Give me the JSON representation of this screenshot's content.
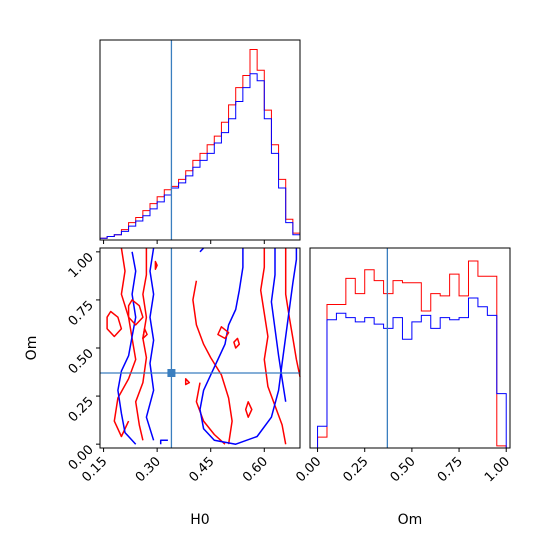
{
  "chart_data": {
    "type": "corner",
    "parameters": [
      "H0",
      "Om"
    ],
    "truth": {
      "H0": 0.34,
      "Om": 0.37
    },
    "colors": {
      "red": "#ff0000",
      "blue": "#0000ff",
      "truth": "#3a7ebf"
    },
    "panels": [
      {
        "name": "H0 marginal histogram",
        "type": "histogram",
        "xlim": [
          0.14,
          0.7
        ],
        "bin_edges": [
          0.14,
          0.16,
          0.18,
          0.2,
          0.22,
          0.24,
          0.26,
          0.28,
          0.3,
          0.32,
          0.34,
          0.36,
          0.38,
          0.4,
          0.42,
          0.44,
          0.46,
          0.48,
          0.5,
          0.52,
          0.54,
          0.56,
          0.58,
          0.6,
          0.62,
          0.64,
          0.66,
          0.68,
          0.7
        ],
        "series": [
          {
            "color": "red",
            "values": [
              1,
              2,
              3,
              6,
              10,
              13,
              17,
              21,
              25,
              29,
              31,
              35,
              40,
              46,
              50,
              55,
              60,
              68,
              78,
              88,
              95,
              110,
              98,
              75,
              55,
              35,
              12,
              4
            ]
          },
          {
            "color": "blue",
            "values": [
              1,
              2,
              3,
              5,
              8,
              11,
              14,
              18,
              22,
              26,
              30,
              33,
              37,
              42,
              46,
              50,
              56,
              62,
              70,
              80,
              88,
              96,
              92,
              70,
              50,
              30,
              10,
              3
            ]
          }
        ],
        "xticks": [
          0.15,
          0.3,
          0.45,
          0.6
        ]
      },
      {
        "name": "H0 vs Om contours",
        "type": "contour",
        "xlabel": "H0",
        "ylabel": "Om",
        "xlim": [
          0.14,
          0.7
        ],
        "ylim": [
          -0.02,
          1.02
        ],
        "xticks": [
          0.15,
          0.3,
          0.45,
          0.6
        ],
        "yticks": [
          0.0,
          0.25,
          0.5,
          0.75,
          1.0
        ],
        "xtick_labels": [
          "0.15",
          "0.30",
          "0.45",
          "0.60"
        ],
        "ytick_labels": [
          "0.00",
          "0.25",
          "0.50",
          "0.75",
          "1.00"
        ]
      },
      {
        "name": "Om marginal histogram",
        "type": "histogram",
        "xlabel": "Om",
        "xlim": [
          -0.04,
          1.02
        ],
        "bin_edges": [
          0.0,
          0.05,
          0.1,
          0.15,
          0.2,
          0.25,
          0.3,
          0.35,
          0.4,
          0.45,
          0.5,
          0.55,
          0.6,
          0.65,
          0.7,
          0.75,
          0.8,
          0.85,
          0.9,
          0.95,
          1.0
        ],
        "series": [
          {
            "color": "red",
            "values": [
              0.05,
              0.66,
              0.66,
              0.78,
              0.71,
              0.82,
              0.77,
              0.71,
              0.77,
              0.76,
              0.76,
              0.63,
              0.71,
              0.7,
              0.8,
              0.7,
              0.86,
              0.79,
              0.79,
              0.01
            ]
          },
          {
            "color": "blue",
            "values": [
              0.1,
              0.59,
              0.62,
              0.6,
              0.58,
              0.6,
              0.57,
              0.55,
              0.6,
              0.5,
              0.58,
              0.61,
              0.55,
              0.6,
              0.59,
              0.6,
              0.69,
              0.65,
              0.61,
              0.25
            ]
          }
        ],
        "xticks": [
          0.0,
          0.25,
          0.5,
          0.75,
          1.0
        ],
        "xtick_labels": [
          "0.00",
          "0.25",
          "0.50",
          "0.75",
          "1.00"
        ]
      }
    ]
  }
}
